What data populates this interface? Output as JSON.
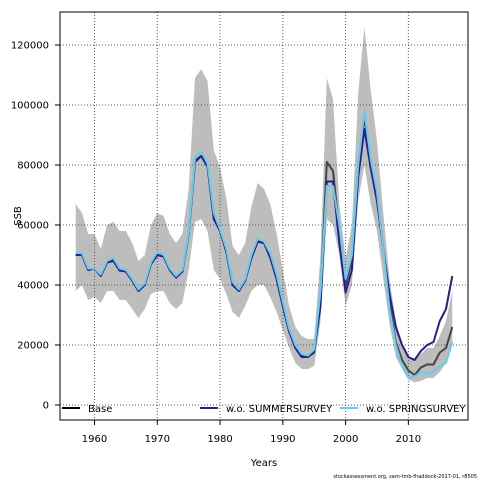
{
  "chart_data": {
    "type": "line",
    "title": "",
    "xlabel": "Years",
    "ylabel": "SSB",
    "xlim": [
      1954.5,
      2019.5
    ],
    "ylim": [
      -5000,
      131000
    ],
    "xticks": [
      1960,
      1970,
      1980,
      1990,
      2000,
      2010
    ],
    "yticks": [
      0,
      20000,
      40000,
      60000,
      80000,
      100000,
      120000
    ],
    "grid": true,
    "legend_position": "bottom",
    "footer": "stockassessment.org, sam-tmb-fhaddock-2017-01, r8505",
    "band": {
      "x": [
        1957,
        1958,
        1959,
        1960,
        1961,
        1962,
        1963,
        1964,
        1965,
        1966,
        1967,
        1968,
        1969,
        1970,
        1971,
        1972,
        1973,
        1974,
        1975,
        1976,
        1977,
        1978,
        1979,
        1980,
        1981,
        1982,
        1983,
        1984,
        1985,
        1986,
        1987,
        1988,
        1989,
        1990,
        1991,
        1992,
        1993,
        1994,
        1995,
        1996,
        1997,
        1998,
        1999,
        2000,
        2001,
        2002,
        2003,
        2004,
        2005,
        2006,
        2007,
        2008,
        2009,
        2010,
        2011,
        2012,
        2013,
        2014,
        2015,
        2016,
        2017
      ],
      "lower": [
        38000,
        40000,
        35000,
        36000,
        34000,
        38000,
        38000,
        35000,
        35000,
        32000,
        29000,
        32000,
        37000,
        38000,
        38000,
        34000,
        32000,
        34000,
        45000,
        61000,
        62000,
        58000,
        45000,
        42000,
        37000,
        31000,
        29000,
        33000,
        38000,
        40000,
        40000,
        36000,
        31000,
        25000,
        19000,
        14000,
        12000,
        12000,
        13000,
        28000,
        62000,
        60000,
        50000,
        33000,
        40000,
        68000,
        80000,
        67000,
        58000,
        42000,
        27000,
        16000,
        12000,
        8500,
        7500,
        8000,
        9000,
        9000,
        11000,
        14000,
        20000
      ],
      "upper": [
        67000,
        64000,
        57000,
        57000,
        52000,
        60000,
        61000,
        58000,
        58000,
        54000,
        48000,
        50000,
        60000,
        64000,
        63000,
        57000,
        54000,
        57000,
        72000,
        109000,
        112000,
        108000,
        85000,
        79000,
        69000,
        53000,
        50000,
        54000,
        66000,
        74000,
        72000,
        67000,
        57000,
        45000,
        33000,
        26000,
        23000,
        22000,
        22000,
        50000,
        109000,
        102000,
        67000,
        49000,
        60000,
        104000,
        126000,
        105000,
        88000,
        64000,
        42000,
        28000,
        20000,
        16000,
        15000,
        17000,
        19000,
        19000,
        23000,
        28000,
        38000
      ]
    },
    "series": [
      {
        "name": "Base",
        "color": "#444444",
        "x": [
          1957,
          1958,
          1959,
          1960,
          1961,
          1962,
          1963,
          1964,
          1965,
          1966,
          1967,
          1968,
          1969,
          1970,
          1971,
          1972,
          1973,
          1974,
          1975,
          1976,
          1977,
          1978,
          1979,
          1980,
          1981,
          1982,
          1983,
          1984,
          1985,
          1986,
          1987,
          1988,
          1989,
          1990,
          1991,
          1992,
          1993,
          1994,
          1995,
          1996,
          1997,
          1998,
          1999,
          2000,
          2001,
          2002,
          2003,
          2004,
          2005,
          2006,
          2007,
          2008,
          2009,
          2010,
          2011,
          2012,
          2013,
          2014,
          2015,
          2016,
          2017
        ],
        "values": [
          50000,
          50000,
          45000,
          45500,
          43000,
          47500,
          48500,
          45000,
          44500,
          41500,
          38000,
          40000,
          47000,
          50000,
          49500,
          45000,
          42500,
          44500,
          57000,
          81500,
          83000,
          79500,
          63000,
          58000,
          51500,
          40500,
          38000,
          41500,
          49000,
          54500,
          54000,
          50000,
          43000,
          34000,
          25000,
          19500,
          16500,
          16000,
          17500,
          36500,
          81000,
          78000,
          58000,
          40000,
          48500,
          80000,
          96000,
          81000,
          70500,
          52000,
          34000,
          21000,
          15000,
          11500,
          10000,
          12500,
          13500,
          13500,
          17500,
          19000,
          26000
        ]
      },
      {
        "name": "w.o. SUMMERSURVEY",
        "color": "#2a1e8a",
        "x": [
          1957,
          1958,
          1959,
          1960,
          1961,
          1962,
          1963,
          1964,
          1965,
          1966,
          1967,
          1968,
          1969,
          1970,
          1971,
          1972,
          1973,
          1974,
          1975,
          1976,
          1977,
          1978,
          1979,
          1980,
          1981,
          1982,
          1983,
          1984,
          1985,
          1986,
          1987,
          1988,
          1989,
          1990,
          1991,
          1992,
          1993,
          1994,
          1995,
          1996,
          1997,
          1998,
          1999,
          2000,
          2001,
          2002,
          2003,
          2004,
          2005,
          2006,
          2007,
          2008,
          2009,
          2010,
          2011,
          2012,
          2013,
          2014,
          2015,
          2016,
          2017
        ],
        "values": [
          50000,
          50000,
          45000,
          45500,
          43000,
          47500,
          48000,
          44800,
          44500,
          41500,
          38000,
          40000,
          47000,
          50000,
          49500,
          45000,
          42500,
          44500,
          57000,
          81000,
          83000,
          79500,
          62000,
          58000,
          51000,
          40000,
          38000,
          41500,
          49000,
          54500,
          54000,
          49000,
          42000,
          33000,
          24500,
          19000,
          16000,
          16000,
          18000,
          33000,
          74500,
          74500,
          54000,
          37500,
          45000,
          76000,
          92000,
          79000,
          68000,
          52000,
          37000,
          26000,
          20000,
          16000,
          15000,
          18000,
          20000,
          21000,
          28000,
          32000,
          43000
        ]
      },
      {
        "name": "w.o. SPRINGSURVEY",
        "color": "#66ccee",
        "x": [
          1957,
          1958,
          1959,
          1960,
          1961,
          1962,
          1963,
          1964,
          1965,
          1966,
          1967,
          1968,
          1969,
          1970,
          1971,
          1972,
          1973,
          1974,
          1975,
          1976,
          1977,
          1978,
          1979,
          1980,
          1981,
          1982,
          1983,
          1984,
          1985,
          1986,
          1987,
          1988,
          1989,
          1990,
          1991,
          1992,
          1993,
          1994,
          1995,
          1996,
          1997,
          1998,
          1999,
          2000,
          2001,
          2002,
          2003,
          2004,
          2005,
          2006,
          2007,
          2008,
          2009,
          2010,
          2011,
          2012,
          2013,
          2014,
          2015,
          2016,
          2017
        ],
        "values": [
          51000,
          50500,
          45500,
          45500,
          43500,
          48000,
          49000,
          45500,
          45000,
          42000,
          38500,
          40500,
          47500,
          51000,
          50000,
          45500,
          43000,
          45000,
          57500,
          82500,
          84500,
          80500,
          64000,
          58500,
          52000,
          41000,
          38500,
          42000,
          50000,
          55500,
          54500,
          50500,
          43500,
          34500,
          25500,
          20000,
          17000,
          16500,
          18500,
          38000,
          73000,
          73000,
          60000,
          42000,
          50000,
          80000,
          98000,
          82000,
          71000,
          52000,
          32000,
          20000,
          13000,
          9000,
          9500,
          11000,
          10500,
          11000,
          13000,
          14000,
          21000
        ]
      }
    ]
  }
}
